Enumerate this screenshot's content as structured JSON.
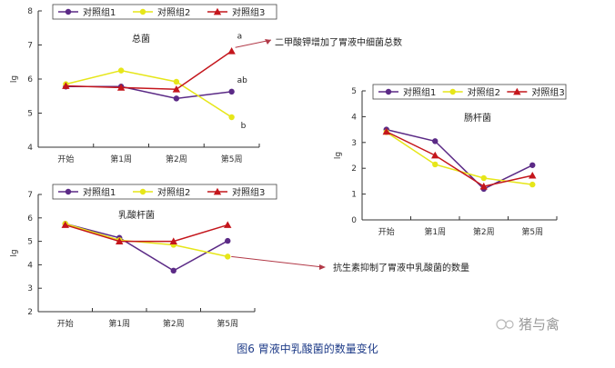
{
  "figure": {
    "caption": "图6 胃液中乳酸菌的数量变化",
    "watermark": "猪与禽",
    "colors": {
      "series1": "#5b2a86",
      "series2": "#e6e619",
      "series3": "#c4161c",
      "caption": "#1f3c88",
      "annotation_arrow": "#b23a48"
    }
  },
  "chart_data": [
    {
      "type": "line",
      "title": "总菌",
      "ylabel": "lg",
      "xlabel": "",
      "categories": [
        "开始",
        "第1周",
        "第2周",
        "第5周"
      ],
      "ylim": [
        4,
        8
      ],
      "yticks": [
        "4",
        "5",
        "6",
        "7",
        "8"
      ],
      "legend": "top",
      "grid": false,
      "series": [
        {
          "name": "对照组1",
          "values": [
            5.78,
            5.78,
            5.43,
            5.63
          ]
        },
        {
          "name": "对照组2",
          "values": [
            5.85,
            6.25,
            5.92,
            4.88
          ]
        },
        {
          "name": "对照组3",
          "values": [
            5.8,
            5.75,
            5.7,
            6.82
          ]
        }
      ],
      "point_labels": [
        "a",
        "ab",
        "b"
      ],
      "annotation": "二甲酸钾增加了胃液中细菌总数"
    },
    {
      "type": "line",
      "title": "肠杆菌",
      "ylabel": "lg",
      "xlabel": "",
      "categories": [
        "开始",
        "第1周",
        "第2周",
        "第5周"
      ],
      "ylim": [
        0,
        5
      ],
      "yticks": [
        "0",
        "1",
        "2",
        "3",
        "4",
        "5"
      ],
      "legend": "top",
      "grid": false,
      "series": [
        {
          "name": "对照组1",
          "values": [
            3.5,
            3.05,
            1.2,
            2.12
          ]
        },
        {
          "name": "对照组2",
          "values": [
            3.4,
            2.15,
            1.62,
            1.37
          ]
        },
        {
          "name": "对照组3",
          "values": [
            3.42,
            2.5,
            1.3,
            1.72
          ]
        }
      ]
    },
    {
      "type": "line",
      "title": "乳酸杆菌",
      "ylabel": "lg",
      "xlabel": "",
      "categories": [
        "开始",
        "第1周",
        "第2周",
        "第5周"
      ],
      "ylim": [
        2,
        7
      ],
      "yticks": [
        "2",
        "3",
        "4",
        "5",
        "6",
        "7"
      ],
      "legend": "top",
      "grid": false,
      "series": [
        {
          "name": "对照组1",
          "values": [
            5.75,
            5.15,
            3.75,
            5.02
          ]
        },
        {
          "name": "对照组2",
          "values": [
            5.75,
            5.05,
            4.85,
            4.35
          ]
        },
        {
          "name": "对照组3",
          "values": [
            5.7,
            5.0,
            5.0,
            5.7
          ]
        }
      ],
      "annotation": "抗生素抑制了胃液中乳酸菌的数量"
    }
  ]
}
